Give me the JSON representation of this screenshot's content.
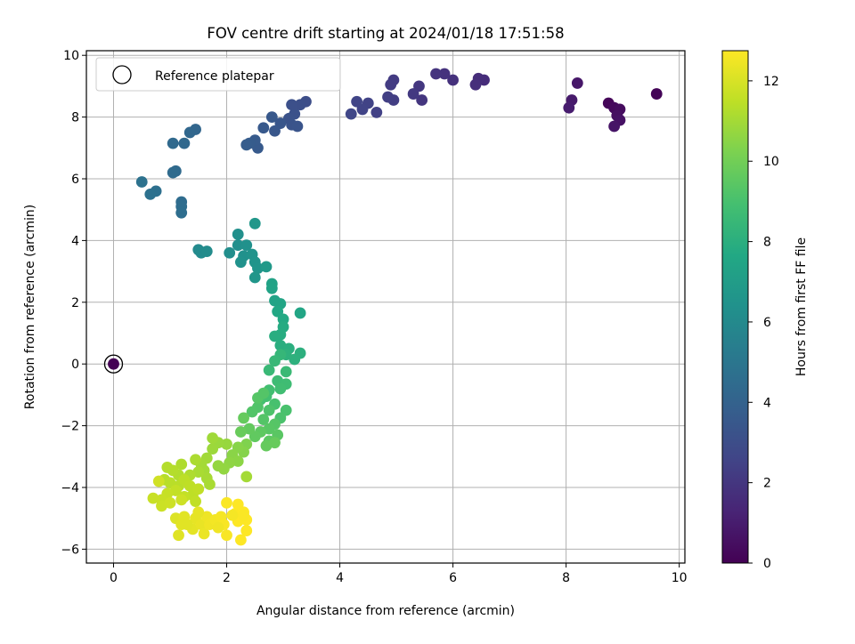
{
  "chart_data": {
    "type": "scatter",
    "title": "FOV centre drift starting at 2024/01/18 17:51:58",
    "xlabel": "Angular distance from reference (arcmin)",
    "ylabel": "Rotation from reference (arcmin)",
    "xlim": [
      -0.48,
      10.1
    ],
    "ylim": [
      -6.45,
      10.15
    ],
    "xticks": [
      0,
      2,
      4,
      6,
      8,
      10
    ],
    "yticks": [
      -6,
      -4,
      -2,
      0,
      2,
      4,
      6,
      8,
      10
    ],
    "grid": true,
    "legend": {
      "placement": "top-left",
      "entries": [
        "Reference platepar"
      ]
    },
    "colorbar": {
      "label": "Hours from first FF file",
      "range": [
        0,
        12.75
      ],
      "ticks": [
        0,
        2,
        4,
        6,
        8,
        10,
        12
      ],
      "colormap": "viridis"
    },
    "reference_point": {
      "x": 0,
      "y": 0,
      "hours": 0
    },
    "points": [
      [
        0,
        0,
        0
      ],
      [
        9.6,
        8.75,
        0.1
      ],
      [
        8.75,
        8.45,
        0.2
      ],
      [
        8.85,
        8.3,
        0.3
      ],
      [
        8.95,
        8.25,
        0.4
      ],
      [
        8.9,
        8.05,
        0.5
      ],
      [
        8.95,
        7.9,
        0.6
      ],
      [
        8.85,
        7.7,
        0.7
      ],
      [
        8.2,
        9.1,
        0.8
      ],
      [
        8.1,
        8.55,
        0.9
      ],
      [
        8.05,
        8.3,
        1.0
      ],
      [
        6.55,
        9.2,
        1.6
      ],
      [
        6.45,
        9.25,
        1.65
      ],
      [
        6.4,
        9.05,
        1.7
      ],
      [
        6.0,
        9.2,
        1.8
      ],
      [
        5.85,
        9.4,
        1.85
      ],
      [
        5.7,
        9.4,
        1.9
      ],
      [
        5.45,
        8.55,
        2.0
      ],
      [
        5.4,
        9.0,
        2.05
      ],
      [
        5.3,
        8.75,
        2.1
      ],
      [
        4.95,
        9.2,
        2.2
      ],
      [
        4.9,
        9.05,
        2.25
      ],
      [
        4.95,
        8.55,
        2.3
      ],
      [
        4.85,
        8.65,
        2.35
      ],
      [
        4.65,
        8.15,
        2.45
      ],
      [
        4.5,
        8.45,
        2.5
      ],
      [
        4.4,
        8.25,
        2.55
      ],
      [
        4.3,
        8.5,
        2.6
      ],
      [
        4.2,
        8.1,
        2.7
      ],
      [
        3.4,
        8.5,
        3.0
      ],
      [
        3.3,
        8.4,
        3.05
      ],
      [
        3.15,
        8.4,
        3.1
      ],
      [
        3.2,
        8.1,
        3.15
      ],
      [
        3.1,
        7.95,
        3.2
      ],
      [
        3.15,
        7.75,
        3.25
      ],
      [
        3.25,
        7.7,
        3.3
      ],
      [
        2.95,
        7.8,
        3.4
      ],
      [
        2.85,
        7.55,
        3.45
      ],
      [
        2.8,
        8.0,
        3.5
      ],
      [
        2.65,
        7.65,
        3.55
      ],
      [
        2.55,
        7.0,
        3.6
      ],
      [
        2.5,
        7.25,
        3.65
      ],
      [
        2.4,
        7.15,
        3.7
      ],
      [
        2.35,
        7.1,
        3.75
      ],
      [
        1.45,
        7.6,
        4.2
      ],
      [
        1.35,
        7.5,
        4.25
      ],
      [
        1.25,
        7.15,
        4.3
      ],
      [
        1.05,
        7.15,
        4.35
      ],
      [
        1.1,
        6.25,
        4.4
      ],
      [
        1.05,
        6.2,
        4.45
      ],
      [
        1.2,
        5.25,
        4.5
      ],
      [
        1.2,
        5.1,
        4.55
      ],
      [
        1.2,
        4.9,
        4.6
      ],
      [
        0.75,
        5.6,
        4.7
      ],
      [
        0.65,
        5.5,
        4.75
      ],
      [
        0.5,
        5.9,
        4.8
      ],
      [
        1.5,
        3.7,
        6.0
      ],
      [
        1.55,
        3.6,
        6.05
      ],
      [
        1.65,
        3.65,
        6.1
      ],
      [
        2.05,
        3.6,
        6.2
      ],
      [
        2.2,
        3.85,
        6.25
      ],
      [
        2.2,
        4.2,
        6.3
      ],
      [
        2.35,
        3.85,
        6.35
      ],
      [
        2.3,
        3.5,
        6.4
      ],
      [
        2.25,
        3.3,
        6.45
      ],
      [
        2.45,
        3.55,
        6.5
      ],
      [
        2.5,
        3.3,
        6.55
      ],
      [
        2.55,
        3.1,
        6.6
      ],
      [
        2.5,
        2.8,
        6.65
      ],
      [
        2.5,
        4.55,
        6.7
      ],
      [
        2.7,
        3.15,
        6.8
      ],
      [
        2.8,
        2.6,
        7.3
      ],
      [
        2.8,
        2.45,
        7.35
      ],
      [
        2.85,
        2.05,
        7.4
      ],
      [
        2.95,
        1.95,
        7.45
      ],
      [
        3.3,
        1.65,
        7.5
      ],
      [
        2.9,
        1.7,
        7.6
      ],
      [
        3.0,
        1.45,
        7.7
      ],
      [
        3.0,
        1.2,
        7.8
      ],
      [
        2.95,
        0.95,
        7.85
      ],
      [
        2.85,
        0.9,
        7.9
      ],
      [
        2.95,
        0.6,
        7.95
      ],
      [
        3.1,
        0.5,
        8.0
      ],
      [
        3.3,
        0.35,
        8.05
      ],
      [
        3.2,
        0.15,
        8.1
      ],
      [
        3.05,
        0.3,
        8.15
      ],
      [
        2.95,
        0.3,
        8.4
      ],
      [
        2.85,
        0.1,
        8.5
      ],
      [
        2.75,
        -0.2,
        8.55
      ],
      [
        3.05,
        -0.25,
        8.6
      ],
      [
        2.9,
        -0.55,
        8.7
      ],
      [
        3.05,
        -0.65,
        8.75
      ],
      [
        2.95,
        -0.8,
        8.8
      ],
      [
        2.75,
        -0.85,
        8.85
      ],
      [
        2.7,
        -1.05,
        8.9
      ],
      [
        2.6,
        -1.15,
        8.95
      ],
      [
        2.85,
        -1.3,
        9.0
      ],
      [
        3.05,
        -1.5,
        9.05
      ],
      [
        2.95,
        -1.75,
        9.1
      ],
      [
        2.75,
        -1.5,
        9.15
      ],
      [
        2.55,
        -1.4,
        9.2
      ],
      [
        2.45,
        -1.55,
        9.25
      ],
      [
        2.65,
        -1.8,
        9.3
      ],
      [
        2.85,
        -1.95,
        9.35
      ],
      [
        2.75,
        -2.1,
        9.4
      ],
      [
        2.9,
        -2.3,
        9.45
      ],
      [
        2.75,
        -2.5,
        9.5
      ],
      [
        2.6,
        -2.2,
        9.55
      ],
      [
        2.5,
        -2.35,
        9.6
      ],
      [
        2.4,
        -2.1,
        9.65
      ],
      [
        2.3,
        -1.75,
        9.7
      ],
      [
        2.25,
        -2.2,
        9.8
      ],
      [
        2.55,
        -1.1,
        9.35
      ],
      [
        2.65,
        -0.95,
        9.3
      ],
      [
        2.7,
        -2.65,
        9.7
      ],
      [
        2.85,
        -2.55,
        9.75
      ],
      [
        2.35,
        -2.6,
        10.3
      ],
      [
        2.3,
        -2.85,
        10.4
      ],
      [
        2.2,
        -2.7,
        10.45
      ],
      [
        2.1,
        -2.95,
        10.5
      ],
      [
        2.2,
        -3.15,
        10.55
      ],
      [
        2.05,
        -3.2,
        10.6
      ],
      [
        1.95,
        -3.4,
        10.65
      ],
      [
        1.85,
        -3.3,
        10.7
      ],
      [
        2.0,
        -2.6,
        10.75
      ],
      [
        1.85,
        -2.55,
        10.8
      ],
      [
        1.75,
        -2.75,
        10.85
      ],
      [
        1.75,
        -2.4,
        10.9
      ],
      [
        1.65,
        -3.05,
        10.95
      ],
      [
        1.55,
        -3.25,
        11.0
      ],
      [
        1.6,
        -3.45,
        11.0
      ],
      [
        1.65,
        -3.7,
        11.05
      ],
      [
        1.7,
        -3.9,
        11.1
      ],
      [
        1.5,
        -3.5,
        11.1
      ],
      [
        1.45,
        -3.1,
        11.15
      ],
      [
        1.35,
        -3.6,
        11.2
      ],
      [
        1.2,
        -3.25,
        11.2
      ],
      [
        1.15,
        -3.6,
        11.25
      ],
      [
        1.05,
        -3.45,
        11.3
      ],
      [
        0.95,
        -3.35,
        11.3
      ],
      [
        0.9,
        -3.75,
        11.35
      ],
      [
        1.0,
        -3.85,
        11.4
      ],
      [
        1.15,
        -3.95,
        11.4
      ],
      [
        1.25,
        -3.75,
        11.45
      ],
      [
        1.35,
        -3.95,
        11.5
      ],
      [
        1.4,
        -4.25,
        11.5
      ],
      [
        1.5,
        -4.05,
        11.55
      ],
      [
        1.45,
        -4.45,
        11.55
      ],
      [
        1.25,
        -4.3,
        11.6
      ],
      [
        1.1,
        -4.1,
        11.6
      ],
      [
        0.95,
        -4.2,
        11.65
      ],
      [
        0.85,
        -4.4,
        11.7
      ],
      [
        0.7,
        -4.35,
        11.7
      ],
      [
        0.85,
        -4.6,
        11.75
      ],
      [
        1.0,
        -4.5,
        11.8
      ],
      [
        1.2,
        -4.4,
        11.8
      ],
      [
        0.8,
        -3.8,
        11.85
      ],
      [
        2.35,
        -3.65,
        11.0
      ],
      [
        1.1,
        -5.0,
        12.1
      ],
      [
        1.15,
        -5.55,
        12.15
      ],
      [
        1.2,
        -5.2,
        12.2
      ],
      [
        1.25,
        -4.95,
        12.2
      ],
      [
        1.4,
        -5.35,
        12.25
      ],
      [
        1.45,
        -5.0,
        12.3
      ],
      [
        1.55,
        -5.2,
        12.35
      ],
      [
        1.6,
        -5.5,
        12.4
      ],
      [
        1.65,
        -4.95,
        12.45
      ],
      [
        1.7,
        -5.2,
        12.5
      ],
      [
        1.8,
        -5.05,
        12.55
      ],
      [
        1.9,
        -4.95,
        12.6
      ],
      [
        1.95,
        -5.2,
        12.65
      ],
      [
        2.0,
        -5.55,
        12.65
      ],
      [
        2.0,
        -4.5,
        12.7
      ],
      [
        2.15,
        -4.85,
        12.7
      ],
      [
        2.2,
        -4.55,
        12.75
      ],
      [
        2.2,
        -5.1,
        12.75
      ],
      [
        2.25,
        -4.95,
        12.75
      ],
      [
        2.3,
        -4.8,
        12.75
      ],
      [
        2.35,
        -5.05,
        12.75
      ],
      [
        2.3,
        -4.9,
        12.7
      ],
      [
        2.35,
        -5.4,
        12.75
      ],
      [
        2.25,
        -5.7,
        12.75
      ],
      [
        2.1,
        -4.9,
        12.6
      ],
      [
        1.85,
        -5.3,
        12.5
      ],
      [
        1.5,
        -4.8,
        12.3
      ],
      [
        1.3,
        -5.2,
        12.2
      ]
    ]
  }
}
